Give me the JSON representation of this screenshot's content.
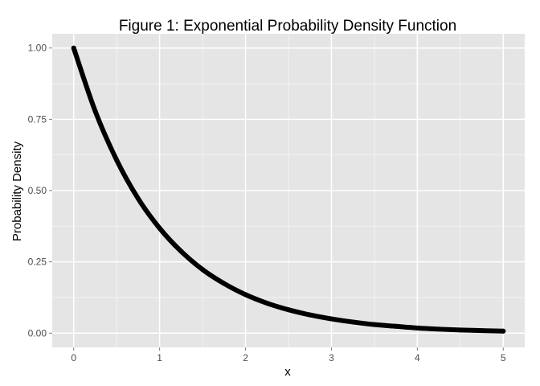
{
  "chart_data": {
    "type": "line",
    "title": "Figure 1: Exponential Probability Density Function",
    "xlabel": "x",
    "ylabel": "Probability Density",
    "xlim": [
      -0.25,
      5.25
    ],
    "ylim": [
      -0.05,
      1.05
    ],
    "x_ticks": [
      0,
      1,
      2,
      3,
      4,
      5
    ],
    "x_tick_labels": [
      "0",
      "1",
      "2",
      "3",
      "4",
      "5"
    ],
    "y_ticks": [
      0,
      0.25,
      0.5,
      0.75,
      1.0
    ],
    "y_tick_labels": [
      "0.00",
      "0.25",
      "0.50",
      "0.75",
      "1.00"
    ],
    "grid": true,
    "legend": "none",
    "series": [
      {
        "x": [
          0,
          0.25,
          0.5,
          0.75,
          1,
          1.25,
          1.5,
          1.75,
          2,
          2.25,
          2.5,
          2.75,
          3,
          3.25,
          3.5,
          3.75,
          4,
          4.25,
          4.5,
          4.75,
          5
        ],
        "values": [
          1.0,
          0.779,
          0.607,
          0.472,
          0.368,
          0.287,
          0.223,
          0.174,
          0.135,
          0.105,
          0.082,
          0.064,
          0.05,
          0.039,
          0.03,
          0.024,
          0.018,
          0.014,
          0.011,
          0.009,
          0.007
        ],
        "color": "#000000"
      }
    ],
    "colors": {
      "panel_background": "#e5e5e5",
      "grid_major": "#ffffff",
      "grid_minor": "#f2f2f2",
      "tick_text": "#4d4d4d",
      "line": "#000000"
    }
  }
}
